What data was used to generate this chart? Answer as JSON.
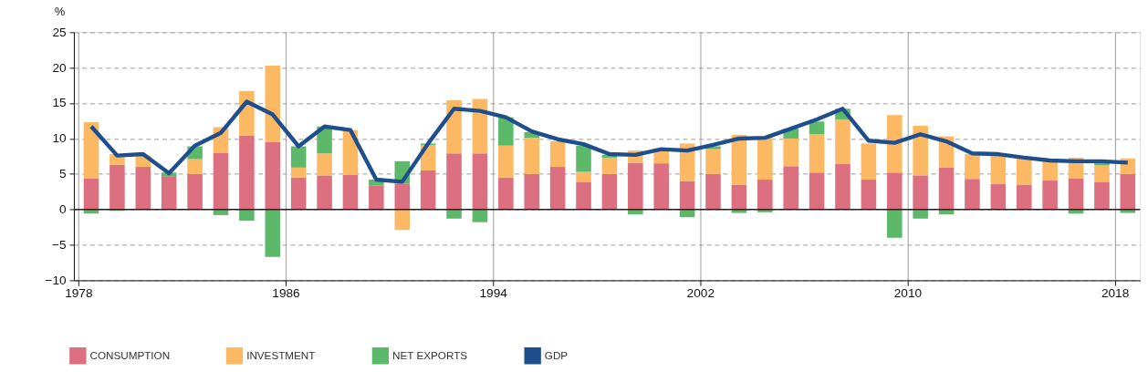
{
  "chart_data": {
    "type": "bar",
    "stacked": true,
    "ylabel": "%",
    "x": [
      1978,
      1979,
      1980,
      1981,
      1982,
      1983,
      1984,
      1985,
      1986,
      1987,
      1988,
      1989,
      1990,
      1991,
      1992,
      1993,
      1994,
      1995,
      1996,
      1997,
      1998,
      1999,
      2000,
      2001,
      2002,
      2003,
      2004,
      2005,
      2006,
      2007,
      2008,
      2009,
      2010,
      2011,
      2012,
      2013,
      2014,
      2015,
      2016,
      2017,
      2018
    ],
    "series": [
      {
        "name": "CONSUMPTION",
        "color": "#dc7080",
        "values": [
          4.4,
          6.3,
          6.0,
          4.6,
          5.0,
          8.0,
          10.4,
          9.5,
          4.5,
          4.8,
          4.9,
          3.4,
          3.6,
          5.5,
          7.9,
          7.9,
          4.5,
          5.0,
          6.0,
          3.9,
          5.0,
          6.6,
          6.5,
          4.0,
          5.0,
          3.5,
          4.2,
          6.1,
          5.2,
          6.4,
          4.2,
          5.2,
          4.8,
          5.9,
          4.3,
          3.6,
          3.5,
          4.1,
          4.4,
          3.9,
          5.0
        ]
      },
      {
        "name": "INVESTMENT",
        "color": "#fdb863",
        "values": [
          7.9,
          1.5,
          1.6,
          0.0,
          2.1,
          3.6,
          6.3,
          10.8,
          1.4,
          3.1,
          6.3,
          0.0,
          -2.9,
          3.6,
          7.5,
          7.7,
          4.5,
          5.1,
          3.6,
          1.4,
          2.3,
          1.7,
          2.1,
          5.3,
          3.5,
          7.0,
          6.0,
          3.9,
          5.4,
          6.3,
          5.1,
          8.1,
          7.0,
          4.4,
          3.5,
          4.2,
          3.8,
          2.8,
          2.9,
          2.3,
          2.2
        ]
      },
      {
        "name": "NET EXPORTS",
        "color": "#5cb96a",
        "values": [
          -0.6,
          -0.2,
          null,
          0.6,
          1.8,
          -0.8,
          -1.6,
          -6.7,
          3.0,
          3.8,
          0.0,
          0.8,
          3.2,
          0.2,
          -1.3,
          -1.8,
          4.0,
          0.8,
          null,
          3.7,
          0.4,
          -0.7,
          0.0,
          -1.1,
          0.4,
          -0.5,
          -0.4,
          1.4,
          1.8,
          1.5,
          null,
          -4.0,
          -1.3,
          -0.7,
          null,
          0.0,
          0.0,
          0.0,
          -0.6,
          0.5,
          -0.5
        ]
      },
      {
        "name": "GDP",
        "type": "line",
        "color": "#1f4e8c",
        "values": [
          11.7,
          7.6,
          7.8,
          5.1,
          9.0,
          10.8,
          15.2,
          13.4,
          8.9,
          11.7,
          11.2,
          4.2,
          3.9,
          9.3,
          14.2,
          13.9,
          13.0,
          11.0,
          9.9,
          9.2,
          7.8,
          7.7,
          8.5,
          8.3,
          9.1,
          10.0,
          10.1,
          11.4,
          12.7,
          14.2,
          9.7,
          9.4,
          10.6,
          9.6,
          7.9,
          7.8,
          7.3,
          6.9,
          6.8,
          6.8,
          6.6
        ]
      }
    ],
    "xlim": [
      1977.5,
      2018.3
    ],
    "xticks": [
      {
        "value": 1977.5,
        "label": "1978"
      },
      {
        "value": 1985.5,
        "label": "1986"
      },
      {
        "value": 1993.5,
        "label": "1994"
      },
      {
        "value": 2001.5,
        "label": "2002"
      },
      {
        "value": 2009.5,
        "label": "2010"
      },
      {
        "value": 2017.5,
        "label": "2018"
      }
    ],
    "ylim": [
      -10,
      25
    ],
    "yticks": [
      -10,
      -5,
      0,
      5,
      10,
      15,
      20,
      25
    ],
    "ref_lines": [
      {
        "axis": "y",
        "value": 0,
        "color": "#222222"
      }
    ],
    "grid": true,
    "legend": "bottom left"
  }
}
